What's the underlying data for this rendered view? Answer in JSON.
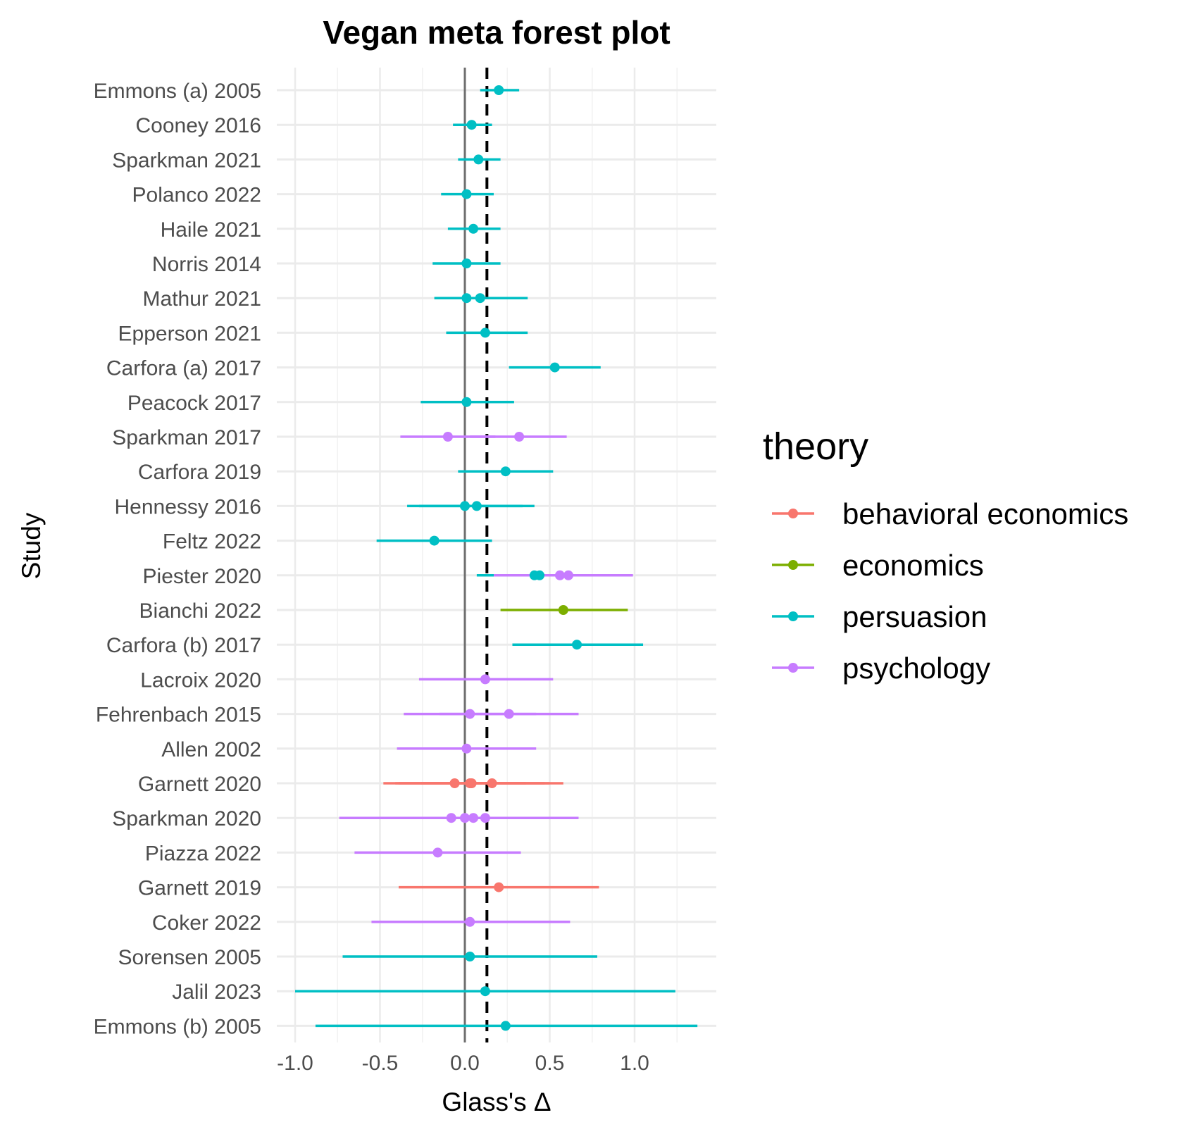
{
  "chart_data": {
    "type": "forest",
    "title": "Vegan meta forest plot",
    "xlabel": "Glass's Δ",
    "ylabel": "Study",
    "xlim": [
      -1.1,
      1.48
    ],
    "x_ticks": [
      -1.0,
      -0.5,
      0.0,
      0.5,
      1.0
    ],
    "x_tick_labels": [
      "-1.0",
      "-0.5",
      "0.0",
      "0.5",
      "1.0"
    ],
    "reference_line": 0,
    "pooled_estimate": 0.13,
    "grid": true,
    "legend": {
      "title": "theory",
      "position": "right",
      "items": [
        {
          "name": "behavioral economics",
          "color": "#F8766D"
        },
        {
          "name": "economics",
          "color": "#7CAE00"
        },
        {
          "name": "persuasion",
          "color": "#00BFC4"
        },
        {
          "name": "psychology",
          "color": "#C77CFF"
        }
      ]
    },
    "studies": [
      "Emmons (a) 2005",
      "Cooney 2016",
      "Sparkman 2021",
      "Polanco 2022",
      "Haile 2021",
      "Norris 2014",
      "Mathur 2021",
      "Epperson 2021",
      "Carfora (a) 2017",
      "Peacock 2017",
      "Sparkman 2017",
      "Carfora 2019",
      "Hennessy 2016",
      "Feltz 2022",
      "Piester 2020",
      "Bianchi 2022",
      "Carfora (b) 2017",
      "Lacroix 2020",
      "Fehrenbach 2015",
      "Allen 2002",
      "Garnett 2020",
      "Sparkman 2020",
      "Piazza 2022",
      "Garnett 2019",
      "Coker 2022",
      "Sorensen 2005",
      "Jalil 2023",
      "Emmons (b) 2005"
    ],
    "estimates": [
      {
        "study": 0,
        "theory": "persuasion",
        "est": 0.2,
        "lo": 0.09,
        "hi": 0.32
      },
      {
        "study": 1,
        "theory": "persuasion",
        "est": 0.04,
        "lo": -0.07,
        "hi": 0.16
      },
      {
        "study": 2,
        "theory": "persuasion",
        "est": 0.08,
        "lo": -0.04,
        "hi": 0.21
      },
      {
        "study": 3,
        "theory": "persuasion",
        "est": 0.01,
        "lo": -0.14,
        "hi": 0.17
      },
      {
        "study": 4,
        "theory": "persuasion",
        "est": 0.05,
        "lo": -0.1,
        "hi": 0.21
      },
      {
        "study": 5,
        "theory": "persuasion",
        "est": 0.01,
        "lo": -0.19,
        "hi": 0.21
      },
      {
        "study": 6,
        "theory": "persuasion",
        "est": 0.01,
        "lo": -0.18,
        "hi": 0.22
      },
      {
        "study": 6,
        "theory": "persuasion",
        "est": 0.09,
        "lo": -0.12,
        "hi": 0.37
      },
      {
        "study": 7,
        "theory": "persuasion",
        "est": 0.12,
        "lo": -0.11,
        "hi": 0.37
      },
      {
        "study": 8,
        "theory": "persuasion",
        "est": 0.53,
        "lo": 0.26,
        "hi": 0.8
      },
      {
        "study": 9,
        "theory": "persuasion",
        "est": 0.01,
        "lo": -0.26,
        "hi": 0.29
      },
      {
        "study": 10,
        "theory": "psychology",
        "est": -0.1,
        "lo": -0.38,
        "hi": 0.18
      },
      {
        "study": 10,
        "theory": "psychology",
        "est": 0.32,
        "lo": 0.03,
        "hi": 0.6
      },
      {
        "study": 11,
        "theory": "persuasion",
        "est": 0.24,
        "lo": -0.04,
        "hi": 0.52
      },
      {
        "study": 12,
        "theory": "persuasion",
        "est": 0.0,
        "lo": -0.34,
        "hi": 0.34
      },
      {
        "study": 12,
        "theory": "persuasion",
        "est": 0.07,
        "lo": -0.27,
        "hi": 0.41
      },
      {
        "study": 13,
        "theory": "persuasion",
        "est": -0.18,
        "lo": -0.52,
        "hi": 0.16
      },
      {
        "study": 14,
        "theory": "persuasion",
        "est": 0.41,
        "lo": 0.07,
        "hi": 0.75
      },
      {
        "study": 14,
        "theory": "persuasion",
        "est": 0.44,
        "lo": 0.1,
        "hi": 0.78
      },
      {
        "study": 14,
        "theory": "psychology",
        "est": 0.56,
        "lo": 0.17,
        "hi": 0.99
      },
      {
        "study": 14,
        "theory": "psychology",
        "est": 0.61,
        "lo": 0.23,
        "hi": 0.99
      },
      {
        "study": 15,
        "theory": "economics",
        "est": 0.58,
        "lo": 0.21,
        "hi": 0.96
      },
      {
        "study": 16,
        "theory": "persuasion",
        "est": 0.66,
        "lo": 0.28,
        "hi": 1.05
      },
      {
        "study": 17,
        "theory": "psychology",
        "est": 0.12,
        "lo": -0.27,
        "hi": 0.52
      },
      {
        "study": 18,
        "theory": "psychology",
        "est": 0.03,
        "lo": -0.36,
        "hi": 0.42
      },
      {
        "study": 18,
        "theory": "psychology",
        "est": 0.26,
        "lo": -0.15,
        "hi": 0.67
      },
      {
        "study": 19,
        "theory": "psychology",
        "est": 0.01,
        "lo": -0.4,
        "hi": 0.42
      },
      {
        "study": 20,
        "theory": "behavioral economics",
        "est": -0.06,
        "lo": -0.48,
        "hi": 0.36
      },
      {
        "study": 20,
        "theory": "behavioral economics",
        "est": 0.03,
        "lo": -0.41,
        "hi": 0.47
      },
      {
        "study": 20,
        "theory": "behavioral economics",
        "est": 0.04,
        "lo": -0.39,
        "hi": 0.5
      },
      {
        "study": 20,
        "theory": "behavioral economics",
        "est": 0.16,
        "lo": -0.26,
        "hi": 0.58
      },
      {
        "study": 21,
        "theory": "psychology",
        "est": -0.08,
        "lo": -0.74,
        "hi": 0.58
      },
      {
        "study": 21,
        "theory": "psychology",
        "est": 0.0,
        "lo": -0.67,
        "hi": 0.67
      },
      {
        "study": 21,
        "theory": "psychology",
        "est": 0.05,
        "lo": -0.4,
        "hi": 0.5
      },
      {
        "study": 21,
        "theory": "psychology",
        "est": 0.12,
        "lo": -0.3,
        "hi": 0.6
      },
      {
        "study": 22,
        "theory": "psychology",
        "est": -0.16,
        "lo": -0.65,
        "hi": 0.33
      },
      {
        "study": 23,
        "theory": "behavioral economics",
        "est": 0.2,
        "lo": -0.39,
        "hi": 0.79
      },
      {
        "study": 24,
        "theory": "psychology",
        "est": 0.03,
        "lo": -0.55,
        "hi": 0.62
      },
      {
        "study": 25,
        "theory": "persuasion",
        "est": 0.03,
        "lo": -0.72,
        "hi": 0.78
      },
      {
        "study": 26,
        "theory": "persuasion",
        "est": 0.12,
        "lo": -1.0,
        "hi": 1.24
      },
      {
        "study": 27,
        "theory": "persuasion",
        "est": 0.24,
        "lo": -0.88,
        "hi": 1.37
      }
    ]
  }
}
